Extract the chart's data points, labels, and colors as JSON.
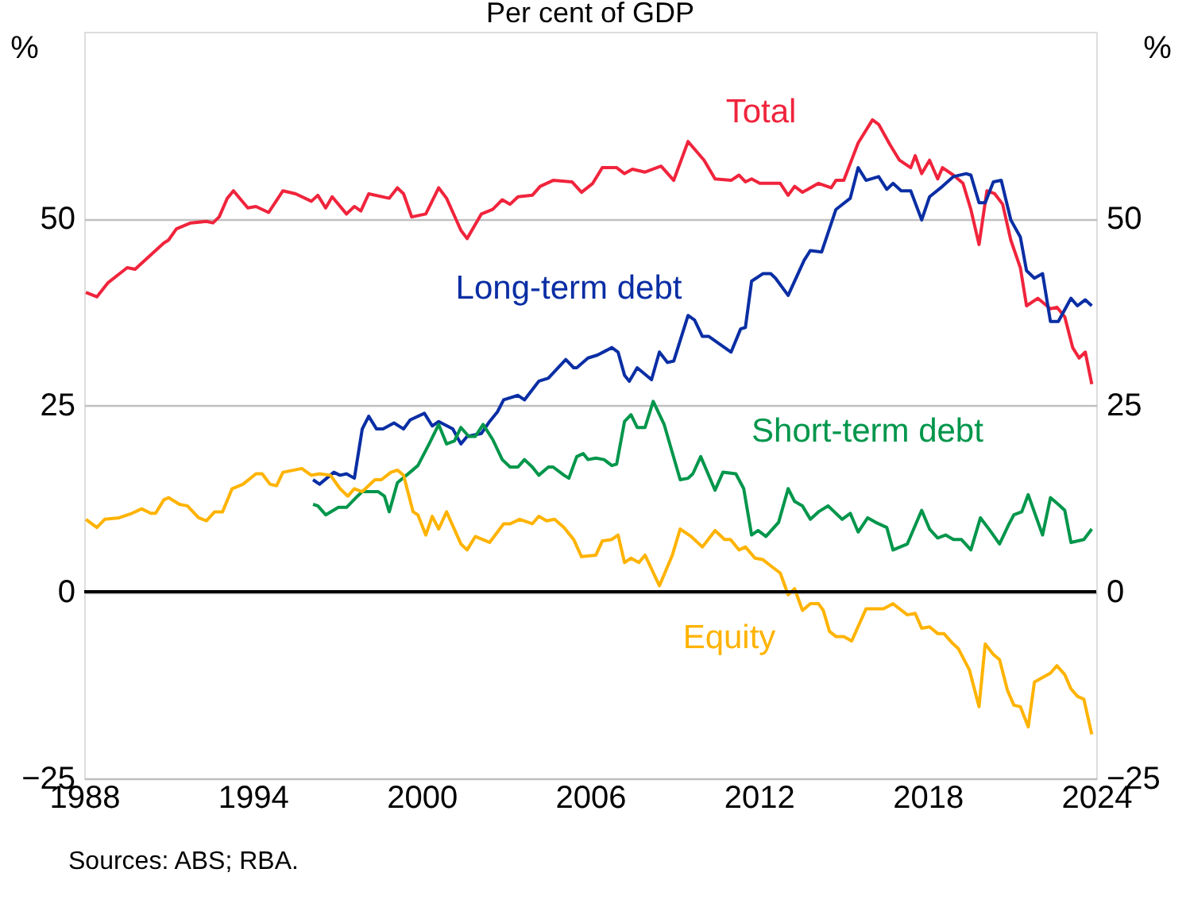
{
  "chart_data": {
    "type": "line",
    "subtitle": "Per cent of GDP",
    "ylabel": "%",
    "y2label": "%",
    "xlim": [
      1988,
      2024
    ],
    "xticks": [
      1988,
      1994,
      2000,
      2006,
      2012,
      2018,
      2024
    ],
    "ylim": [
      -25,
      75
    ],
    "yticks": [
      -25,
      0,
      25,
      50
    ],
    "y2lim": [
      -25,
      75
    ],
    "y2ticks": [
      -25,
      0,
      25,
      50
    ],
    "grid": "y",
    "line_style": "solid",
    "marker": "none",
    "ref_lines": [
      {
        "axis": "y",
        "value": 0,
        "color": "#000000"
      }
    ],
    "annotations": [
      "Sources: ABS; RBA."
    ],
    "series": [
      {
        "name": "Total",
        "color": "#f0243c",
        "x": [
          1988.06,
          1988.45,
          1988.85,
          1989.53,
          1989.81,
          1990.83,
          1991.0,
          1991.28,
          1991.79,
          1992.35,
          1992.58,
          1992.8,
          1993.09,
          1993.31,
          1993.82,
          1994.11,
          1994.56,
          1995.07,
          1995.52,
          1996.08,
          1996.31,
          1996.59,
          1996.82,
          1997.33,
          1997.61,
          1997.84,
          1998.12,
          1998.85,
          1999.14,
          1999.36,
          1999.65,
          2000.15,
          2000.61,
          2000.89,
          2001.4,
          2001.62,
          2002.13,
          2002.53,
          2002.87,
          2003.15,
          2003.43,
          2003.94,
          2004.22,
          2004.68,
          2005.35,
          2005.69,
          2006.09,
          2006.43,
          2006.94,
          2007.22,
          2007.5,
          2007.95,
          2008.52,
          2008.97,
          2009.48,
          2010.05,
          2010.44,
          2011.01,
          2011.29,
          2011.52,
          2011.74,
          2012.03,
          2012.76,
          2013.04,
          2013.27,
          2013.55,
          2014.12,
          2014.57,
          2014.74,
          2015.02,
          2015.53,
          2016.04,
          2016.26,
          2016.66,
          2017.0,
          2017.4,
          2017.56,
          2017.79,
          2018.07,
          2018.36,
          2018.53,
          2018.92,
          2019.26,
          2019.54,
          2019.83,
          2020.11,
          2020.39,
          2020.67,
          2020.96,
          2021.3,
          2021.52,
          2021.92,
          2022.37,
          2022.6,
          2022.88,
          2023.16,
          2023.39,
          2023.61,
          2023.84
        ],
        "values": [
          40.1,
          39.5,
          41.4,
          43.4,
          43.2,
          46.7,
          47.1,
          48.6,
          49.4,
          49.6,
          49.4,
          50.2,
          52.7,
          53.7,
          51.4,
          51.6,
          50.8,
          53.7,
          53.3,
          52.3,
          53.1,
          51.4,
          52.9,
          50.6,
          51.6,
          51.0,
          53.3,
          52.7,
          54.1,
          53.3,
          50.2,
          50.6,
          54.1,
          52.7,
          48.4,
          47.3,
          50.6,
          51.2,
          52.5,
          51.9,
          52.9,
          53.1,
          54.3,
          55.1,
          54.9,
          53.5,
          54.7,
          56.8,
          56.8,
          56.0,
          56.6,
          56.2,
          57.0,
          55.1,
          60.3,
          57.8,
          55.3,
          55.1,
          55.8,
          54.9,
          55.3,
          54.7,
          54.7,
          53.1,
          54.3,
          53.5,
          54.7,
          54.1,
          55.1,
          55.1,
          60.1,
          63.2,
          62.6,
          59.9,
          57.8,
          56.8,
          58.4,
          56.0,
          57.8,
          55.3,
          56.8,
          55.8,
          54.7,
          51.2,
          46.5,
          53.7,
          53.3,
          51.9,
          47.1,
          43.4,
          38.3,
          39.3,
          37.9,
          38.1,
          36.8,
          32.7,
          31.3,
          32.1,
          27.8
        ]
      },
      {
        "name": "Long-term debt",
        "color": "#0a2ea4",
        "x": [
          1996.14,
          1996.37,
          1996.88,
          1997.1,
          1997.33,
          1997.61,
          1997.89,
          1998.12,
          1998.4,
          1998.63,
          1999.02,
          1999.36,
          1999.59,
          2000.1,
          2000.38,
          2000.61,
          2001.11,
          2001.4,
          2001.62,
          2002.13,
          2002.42,
          2002.7,
          2002.92,
          2003.43,
          2003.66,
          2004.17,
          2004.51,
          2005.13,
          2005.41,
          2005.52,
          2005.92,
          2006.26,
          2006.77,
          2006.99,
          2007.22,
          2007.39,
          2007.67,
          2008.18,
          2008.46,
          2008.75,
          2008.97,
          2009.48,
          2009.71,
          2009.99,
          2010.22,
          2011.01,
          2011.35,
          2011.52,
          2011.74,
          2012.14,
          2012.42,
          2012.59,
          2013.04,
          2013.61,
          2013.83,
          2014.23,
          2014.74,
          2015.25,
          2015.53,
          2015.81,
          2016.26,
          2016.55,
          2016.77,
          2017.06,
          2017.4,
          2017.79,
          2018.07,
          2018.53,
          2018.92,
          2019.37,
          2019.54,
          2019.83,
          2020.05,
          2020.34,
          2020.62,
          2020.96,
          2021.3,
          2021.52,
          2021.8,
          2022.09,
          2022.37,
          2022.65,
          2023.1,
          2023.33,
          2023.61,
          2023.84
        ],
        "values": [
          15.0,
          14.4,
          16.0,
          15.6,
          15.8,
          15.2,
          21.8,
          23.5,
          21.8,
          21.8,
          22.6,
          21.8,
          23.0,
          23.9,
          22.2,
          22.8,
          21.8,
          19.8,
          20.8,
          21.2,
          22.8,
          24.1,
          25.7,
          26.3,
          25.7,
          28.2,
          28.6,
          31.1,
          30.0,
          30.0,
          31.3,
          31.7,
          32.7,
          32.1,
          29.0,
          28.2,
          30.0,
          28.4,
          32.1,
          30.7,
          30.9,
          37.0,
          36.4,
          34.2,
          34.2,
          32.1,
          35.2,
          35.4,
          41.6,
          42.6,
          42.6,
          42.0,
          39.7,
          44.4,
          45.7,
          45.5,
          51.2,
          52.7,
          56.8,
          55.1,
          55.6,
          53.9,
          54.7,
          53.7,
          53.7,
          49.8,
          52.9,
          54.3,
          55.6,
          56.0,
          55.8,
          52.1,
          52.1,
          54.9,
          55.1,
          49.8,
          47.5,
          43.0,
          42.0,
          42.6,
          36.2,
          36.2,
          39.3,
          38.3,
          39.1,
          38.3
        ]
      },
      {
        "name": "Short-term debt",
        "color": "#00964b",
        "x": [
          1996.14,
          1996.31,
          1996.59,
          1997.04,
          1997.33,
          1997.72,
          1997.89,
          1998.46,
          1998.68,
          1998.85,
          1999.14,
          1999.59,
          1999.87,
          2000.27,
          2000.61,
          2000.89,
          2001.17,
          2001.4,
          2001.68,
          2001.91,
          2002.19,
          2002.53,
          2002.87,
          2003.15,
          2003.43,
          2003.66,
          2003.94,
          2004.17,
          2004.51,
          2004.68,
          2005.07,
          2005.24,
          2005.52,
          2005.75,
          2005.92,
          2006.2,
          2006.49,
          2006.77,
          2006.94,
          2007.22,
          2007.45,
          2007.67,
          2007.95,
          2008.24,
          2008.63,
          2009.2,
          2009.48,
          2009.65,
          2009.93,
          2010.44,
          2010.72,
          2011.18,
          2011.46,
          2011.74,
          2011.97,
          2012.25,
          2012.7,
          2013.04,
          2013.27,
          2013.55,
          2013.83,
          2014.12,
          2014.46,
          2014.96,
          2015.25,
          2015.53,
          2015.87,
          2016.15,
          2016.55,
          2016.77,
          2017.28,
          2017.79,
          2018.07,
          2018.36,
          2018.64,
          2018.92,
          2019.2,
          2019.54,
          2019.88,
          2020.22,
          2020.56,
          2020.9,
          2021.07,
          2021.35,
          2021.58,
          2022.09,
          2022.37,
          2022.65,
          2022.88,
          2023.1,
          2023.56,
          2023.84
        ],
        "values": [
          11.7,
          11.5,
          10.3,
          11.3,
          11.3,
          12.8,
          13.4,
          13.4,
          12.8,
          10.7,
          14.6,
          16.0,
          16.9,
          19.8,
          22.4,
          19.8,
          20.2,
          22.0,
          20.8,
          20.8,
          22.4,
          20.4,
          17.7,
          16.7,
          16.7,
          17.7,
          16.7,
          15.6,
          16.7,
          16.7,
          15.6,
          15.2,
          18.1,
          18.5,
          17.7,
          17.9,
          17.7,
          16.9,
          17.1,
          22.8,
          23.7,
          22.0,
          22.0,
          25.5,
          22.4,
          15.0,
          15.2,
          15.8,
          18.1,
          13.6,
          16.0,
          15.8,
          13.8,
          7.6,
          8.2,
          7.4,
          9.3,
          13.8,
          12.1,
          11.5,
          9.7,
          10.7,
          11.5,
          9.7,
          10.5,
          8.0,
          9.9,
          9.3,
          8.6,
          5.6,
          6.4,
          10.9,
          8.4,
          7.2,
          7.6,
          7.0,
          7.0,
          5.6,
          9.9,
          8.2,
          6.4,
          9.1,
          10.3,
          10.7,
          13.0,
          7.6,
          12.6,
          11.7,
          10.9,
          6.6,
          7.0,
          8.4
        ]
      },
      {
        "name": "Equity",
        "color": "#ffb300",
        "x": [
          1988.06,
          1988.45,
          1988.73,
          1989.24,
          1989.7,
          1990.04,
          1990.37,
          1990.54,
          1990.83,
          1991.0,
          1991.39,
          1991.67,
          1992.07,
          1992.35,
          1992.64,
          1992.92,
          1993.26,
          1993.65,
          1994.11,
          1994.33,
          1994.61,
          1994.84,
          1995.07,
          1995.74,
          1996.08,
          1996.37,
          1996.76,
          1997.1,
          1997.38,
          1997.61,
          1997.89,
          1998.34,
          1998.57,
          1998.91,
          1999.14,
          1999.36,
          1999.7,
          1999.87,
          2000.15,
          2000.38,
          2000.61,
          2000.89,
          2001.4,
          2001.62,
          2001.91,
          2002.42,
          2002.92,
          2003.15,
          2003.49,
          2003.94,
          2004.17,
          2004.45,
          2004.73,
          2005.07,
          2005.41,
          2005.69,
          2006.2,
          2006.43,
          2006.77,
          2006.99,
          2007.22,
          2007.45,
          2007.73,
          2007.95,
          2008.46,
          2008.92,
          2009.2,
          2009.59,
          2009.99,
          2010.44,
          2010.78,
          2010.99,
          2011.29,
          2011.52,
          2011.86,
          2012.14,
          2012.48,
          2012.76,
          2013.04,
          2013.27,
          2013.55,
          2013.83,
          2014.12,
          2014.29,
          2014.51,
          2014.74,
          2015.02,
          2015.3,
          2015.81,
          2016.43,
          2016.77,
          2017.28,
          2017.56,
          2017.79,
          2018.07,
          2018.36,
          2018.58,
          2018.86,
          2019.09,
          2019.49,
          2019.83,
          2020.05,
          2020.34,
          2020.56,
          2020.84,
          2021.07,
          2021.3,
          2021.58,
          2021.8,
          2022.09,
          2022.37,
          2022.6,
          2022.88,
          2023.1,
          2023.33,
          2023.56,
          2023.84
        ],
        "values": [
          9.7,
          8.6,
          9.7,
          9.9,
          10.5,
          11.1,
          10.5,
          10.5,
          12.3,
          12.6,
          11.7,
          11.5,
          9.9,
          9.5,
          10.7,
          10.7,
          13.8,
          14.4,
          15.8,
          15.8,
          14.4,
          14.2,
          16.0,
          16.5,
          15.6,
          15.8,
          15.6,
          13.8,
          12.8,
          13.8,
          13.4,
          15.0,
          15.0,
          16.0,
          16.3,
          15.6,
          10.7,
          10.3,
          7.6,
          10.1,
          8.4,
          10.7,
          6.4,
          5.6,
          7.4,
          6.6,
          9.1,
          9.1,
          9.7,
          9.1,
          10.1,
          9.5,
          9.7,
          8.6,
          7.0,
          4.7,
          4.9,
          6.8,
          7.0,
          7.6,
          3.9,
          4.5,
          3.9,
          4.9,
          0.8,
          4.9,
          8.4,
          7.4,
          6.0,
          8.2,
          7.0,
          7.0,
          5.6,
          6.0,
          4.5,
          4.3,
          3.3,
          2.5,
          -0.4,
          0.4,
          -2.5,
          -1.6,
          -1.6,
          -2.5,
          -5.3,
          -6.0,
          -6.0,
          -6.6,
          -2.3,
          -2.3,
          -1.6,
          -3.1,
          -2.9,
          -4.9,
          -4.7,
          -5.6,
          -5.6,
          -6.8,
          -7.6,
          -10.5,
          -15.4,
          -7.0,
          -8.4,
          -9.1,
          -13.2,
          -15.2,
          -15.4,
          -18.1,
          -12.1,
          -11.5,
          -10.9,
          -9.9,
          -11.1,
          -13.0,
          -14.0,
          -14.4,
          -19.1
        ]
      }
    ]
  }
}
